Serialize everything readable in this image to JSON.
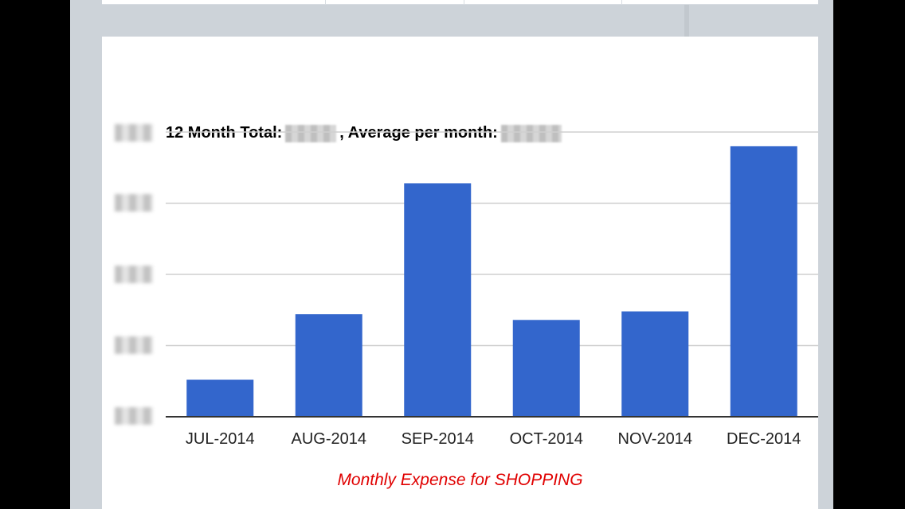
{
  "chart_data": {
    "type": "bar",
    "title": "12 Month Total: ▇▇▇▇, Average per month: ▇▇▇▇",
    "title_parts": {
      "total_label": "12 Month Total:",
      "average_label": ", Average per month:"
    },
    "categories": [
      "JUL-2014",
      "AUG-2014",
      "SEP-2014",
      "OCT-2014",
      "NOV-2014",
      "DEC-2014"
    ],
    "values": [
      0.13,
      0.36,
      0.82,
      0.34,
      0.37,
      0.95
    ],
    "value_scale_note": "values are fractions of the top gridline because the y-axis tick labels are redacted",
    "ylim": [
      0,
      1
    ],
    "grid": true,
    "bar_color": "#3366cc",
    "caption": "Monthly Expense for SHOPPING",
    "caption_color": "#e00000"
  }
}
